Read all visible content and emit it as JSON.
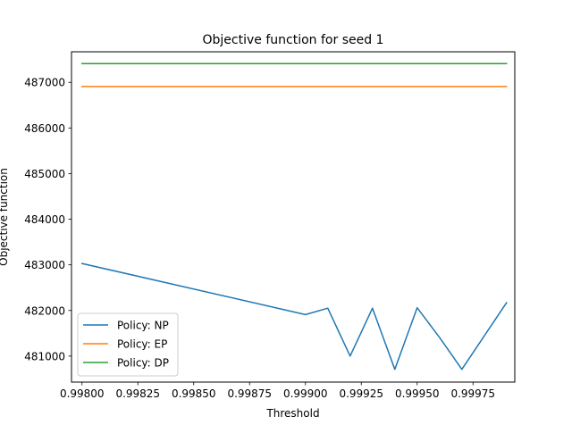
{
  "chart_data": {
    "type": "line",
    "title": "Objective function for seed 1",
    "xlabel": "Threshold",
    "ylabel": "Objective function",
    "xlim": [
      0.997953,
      0.999937
    ],
    "ylim": [
      480430,
      487670
    ],
    "x_ticks": [
      0.998,
      0.99825,
      0.9985,
      0.99875,
      0.999,
      0.99925,
      0.9995,
      0.99975
    ],
    "x_tick_labels": [
      "0.99800",
      "0.99825",
      "0.99850",
      "0.99875",
      "0.99900",
      "0.99925",
      "0.99950",
      "0.99975"
    ],
    "y_ticks": [
      481000,
      482000,
      483000,
      484000,
      485000,
      486000,
      487000
    ],
    "y_tick_labels": [
      "481000",
      "482000",
      "483000",
      "484000",
      "485000",
      "486000",
      "487000"
    ],
    "grid": false,
    "legend_position": "lower-left",
    "series": [
      {
        "name": "Policy: NP",
        "color": "#1f77b4",
        "x": [
          0.998,
          0.999,
          0.9991,
          0.9992,
          0.9993,
          0.9994,
          0.9995,
          0.9996,
          0.9997,
          0.9999
        ],
        "y": [
          483030,
          481910,
          482050,
          481000,
          482050,
          480710,
          482060,
          481410,
          480710,
          482170
        ]
      },
      {
        "name": "Policy: EP",
        "color": "#ff7f0e",
        "x": [
          0.998,
          0.9999
        ],
        "y": [
          486910,
          486910
        ]
      },
      {
        "name": "Policy: DP",
        "color": "#2ca02c",
        "x": [
          0.998,
          0.9999
        ],
        "y": [
          487410,
          487410
        ]
      }
    ]
  }
}
